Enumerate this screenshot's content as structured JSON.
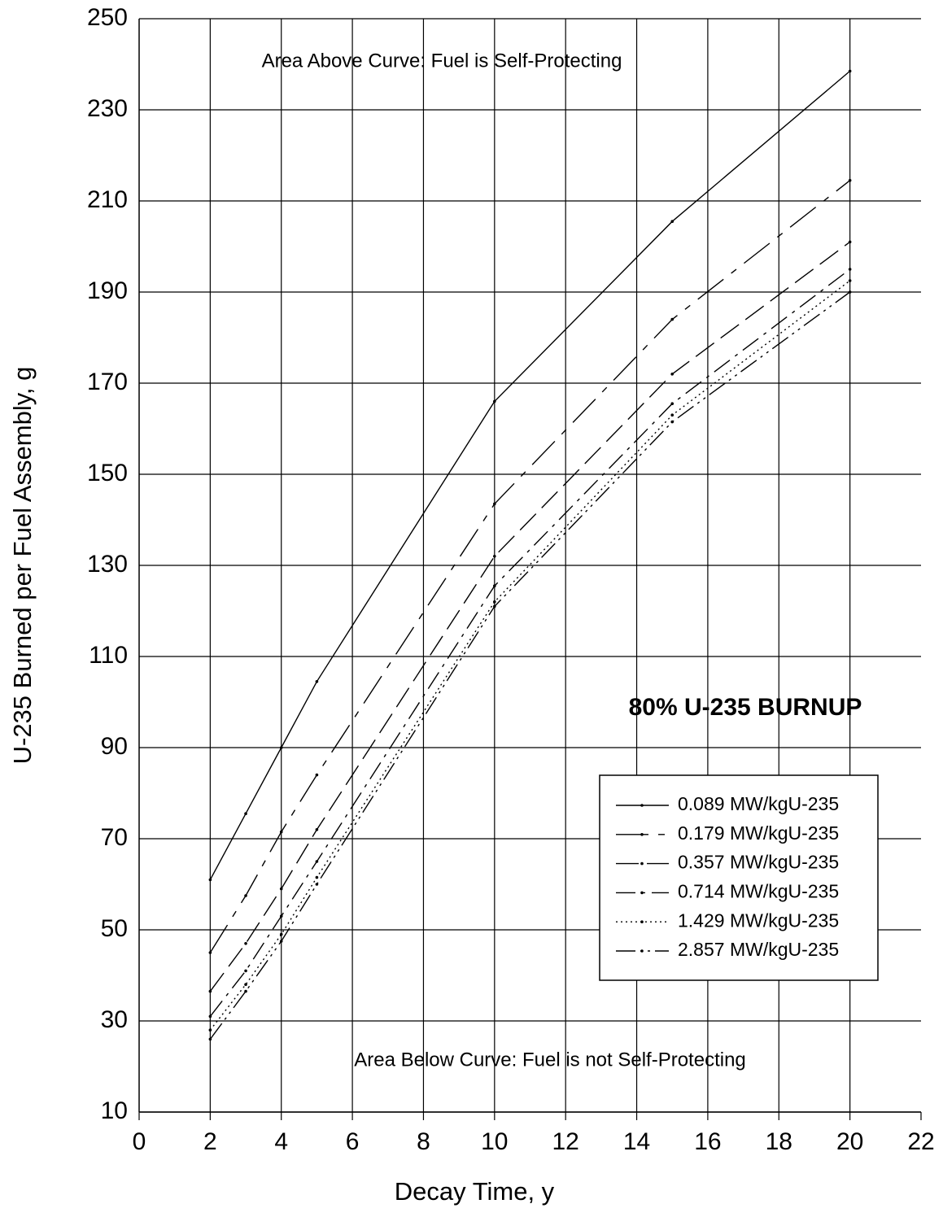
{
  "chart_data": {
    "type": "line",
    "xlabel": "Decay Time, y",
    "ylabel": "U-235 Burned per Fuel Assembly, g",
    "annotations": [
      "Area Above Curve: Fuel is Self-Protecting",
      "Area Below Curve: Fuel is not Self-Protecting",
      "80% U-235 BURNUP"
    ],
    "x": [
      2,
      3,
      4,
      5,
      10,
      15,
      20
    ],
    "series": [
      {
        "name": "0.089 MW/kgU-235",
        "color": "#000000",
        "dash": "none",
        "values": [
          61,
          75.5,
          90,
          104.5,
          166,
          205.5,
          238.5
        ]
      },
      {
        "name": "0.179 MW/kgU-235",
        "color": "#000000",
        "dash": "40,12,8,12",
        "values": [
          45,
          57.5,
          71.5,
          84,
          143.5,
          184,
          214.5
        ]
      },
      {
        "name": "0.357 MW/kgU-235",
        "color": "#000000",
        "dash": "28,10",
        "values": [
          36.5,
          47,
          59,
          72,
          132,
          172,
          201
        ]
      },
      {
        "name": "0.714 MW/kgU-235",
        "color": "#000000",
        "dash": "24,8,4,8",
        "values": [
          31,
          41,
          53,
          65,
          125.5,
          165.5,
          195
        ]
      },
      {
        "name": "1.429 MW/kgU-235",
        "color": "#000000",
        "dash": "2,4",
        "values": [
          28,
          38,
          49,
          61.5,
          122,
          163,
          192.5
        ]
      },
      {
        "name": "2.857 MW/kgU-235",
        "color": "#000000",
        "dash": "24,6,3,6,3,6",
        "values": [
          26,
          36.5,
          47.5,
          60,
          121,
          161.5,
          190
        ]
      }
    ],
    "xlim": [
      0,
      22
    ],
    "xticks": [
      0,
      2,
      4,
      6,
      8,
      10,
      12,
      14,
      16,
      18,
      20,
      22
    ],
    "ylim": [
      10,
      250
    ],
    "yticks": [
      10,
      30,
      50,
      70,
      90,
      110,
      130,
      150,
      170,
      190,
      210,
      230,
      250
    ],
    "grid": true
  }
}
